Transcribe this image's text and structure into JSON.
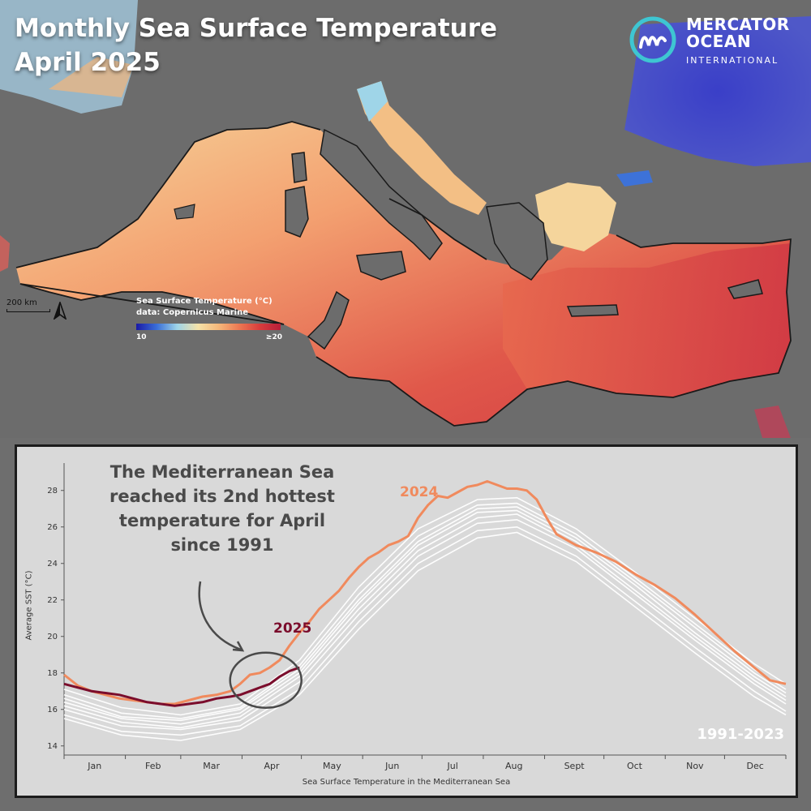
{
  "header": {
    "title_line1": "Monthly Sea Surface Temperature",
    "title_line2": "April 2025"
  },
  "logo": {
    "line1": "MERCATOR",
    "line2": "OCEAN",
    "line3": "INTERNATIONAL",
    "icon": "mercator-m-icon"
  },
  "map": {
    "scale_label": "200 km",
    "north_icon": "north-arrow-icon",
    "legend": {
      "title": "Sea Surface Temperature (°C)",
      "source": "data: Copernicus Marine",
      "min_label": "10",
      "max_label": "≥20"
    },
    "colors": {
      "land": "#6e6e6e",
      "cold": "#3340c4",
      "mid": "#f5d9a0",
      "warm": "#e06048",
      "hot": "#d13a44"
    }
  },
  "chart_data": {
    "type": "line",
    "title": "",
    "xlabel": "Sea Surface Temperature in the Mediterranean Sea",
    "ylabel": "Average SST (°C)",
    "ylim": [
      13.5,
      29.5
    ],
    "yticks": [
      "14",
      "16",
      "18",
      "20",
      "22",
      "24",
      "26",
      "28"
    ],
    "months": [
      "Jan",
      "Feb",
      "Mar",
      "Apr",
      "May",
      "Jun",
      "Jul",
      "Aug",
      "Sept",
      "Oct",
      "Nov",
      "Dec"
    ],
    "annotation": "The Mediterranean Sea reached its 2nd hottest temperature for April since 1991",
    "range_label": "1991-2023",
    "series": [
      {
        "name": "2024",
        "color": "#f08a5d",
        "points": [
          [
            1,
            17.9
          ],
          [
            8,
            17.3
          ],
          [
            15,
            17.0
          ],
          [
            22,
            16.8
          ],
          [
            29,
            16.6
          ],
          [
            36,
            16.5
          ],
          [
            43,
            16.4
          ],
          [
            50,
            16.3
          ],
          [
            57,
            16.3
          ],
          [
            64,
            16.5
          ],
          [
            71,
            16.7
          ],
          [
            78,
            16.8
          ],
          [
            85,
            17.0
          ],
          [
            90,
            17.4
          ],
          [
            95,
            17.9
          ],
          [
            100,
            18.0
          ],
          [
            105,
            18.3
          ],
          [
            110,
            18.7
          ],
          [
            115,
            19.5
          ],
          [
            120,
            20.2
          ],
          [
            125,
            20.8
          ],
          [
            130,
            21.5
          ],
          [
            135,
            22.0
          ],
          [
            140,
            22.5
          ],
          [
            145,
            23.2
          ],
          [
            150,
            23.8
          ],
          [
            155,
            24.3
          ],
          [
            160,
            24.6
          ],
          [
            165,
            25.0
          ],
          [
            170,
            25.2
          ],
          [
            175,
            25.5
          ],
          [
            180,
            26.5
          ],
          [
            185,
            27.2
          ],
          [
            190,
            27.7
          ],
          [
            195,
            27.6
          ],
          [
            200,
            27.9
          ],
          [
            205,
            28.2
          ],
          [
            210,
            28.3
          ],
          [
            215,
            28.5
          ],
          [
            220,
            28.3
          ],
          [
            225,
            28.1
          ],
          [
            230,
            28.1
          ],
          [
            235,
            28.0
          ],
          [
            240,
            27.5
          ],
          [
            245,
            26.5
          ],
          [
            250,
            25.6
          ],
          [
            260,
            25.0
          ],
          [
            270,
            24.6
          ],
          [
            280,
            24.1
          ],
          [
            290,
            23.4
          ],
          [
            300,
            22.8
          ],
          [
            310,
            22.1
          ],
          [
            320,
            21.2
          ],
          [
            330,
            20.2
          ],
          [
            340,
            19.2
          ],
          [
            350,
            18.3
          ],
          [
            358,
            17.6
          ],
          [
            366,
            17.4
          ]
        ]
      },
      {
        "name": "2025",
        "color": "#7b0d2c",
        "points": [
          [
            1,
            17.4
          ],
          [
            8,
            17.2
          ],
          [
            15,
            17.0
          ],
          [
            22,
            16.9
          ],
          [
            29,
            16.8
          ],
          [
            36,
            16.6
          ],
          [
            43,
            16.4
          ],
          [
            50,
            16.3
          ],
          [
            57,
            16.2
          ],
          [
            64,
            16.3
          ],
          [
            71,
            16.4
          ],
          [
            78,
            16.6
          ],
          [
            85,
            16.7
          ],
          [
            90,
            16.8
          ],
          [
            95,
            17.0
          ],
          [
            100,
            17.2
          ],
          [
            105,
            17.4
          ],
          [
            110,
            17.8
          ],
          [
            115,
            18.1
          ],
          [
            120,
            18.3
          ]
        ]
      }
    ],
    "climatology": [
      {
        "points": [
          [
            1,
            16.0
          ],
          [
            30,
            15.1
          ],
          [
            60,
            14.9
          ],
          [
            90,
            15.4
          ],
          [
            120,
            17.5
          ],
          [
            150,
            21.2
          ],
          [
            180,
            24.4
          ],
          [
            210,
            26.2
          ],
          [
            230,
            26.4
          ],
          [
            260,
            24.8
          ],
          [
            290,
            22.3
          ],
          [
            320,
            19.8
          ],
          [
            350,
            17.4
          ],
          [
            366,
            16.3
          ]
        ]
      },
      {
        "points": [
          [
            1,
            16.4
          ],
          [
            30,
            15.5
          ],
          [
            60,
            15.2
          ],
          [
            90,
            15.8
          ],
          [
            120,
            18.0
          ],
          [
            150,
            21.8
          ],
          [
            180,
            25.0
          ],
          [
            210,
            26.8
          ],
          [
            230,
            26.9
          ],
          [
            260,
            25.2
          ],
          [
            290,
            22.8
          ],
          [
            320,
            20.2
          ],
          [
            350,
            17.8
          ],
          [
            366,
            16.7
          ]
        ]
      },
      {
        "points": [
          [
            1,
            16.8
          ],
          [
            30,
            15.8
          ],
          [
            60,
            15.5
          ],
          [
            90,
            16.1
          ],
          [
            120,
            18.4
          ],
          [
            150,
            22.3
          ],
          [
            180,
            25.5
          ],
          [
            210,
            27.2
          ],
          [
            230,
            27.3
          ],
          [
            260,
            25.6
          ],
          [
            290,
            23.2
          ],
          [
            320,
            20.7
          ],
          [
            350,
            18.2
          ],
          [
            366,
            17.1
          ]
        ]
      },
      {
        "points": [
          [
            1,
            15.7
          ],
          [
            30,
            14.8
          ],
          [
            60,
            14.6
          ],
          [
            90,
            15.1
          ],
          [
            120,
            17.1
          ],
          [
            150,
            20.8
          ],
          [
            180,
            24.0
          ],
          [
            210,
            25.8
          ],
          [
            230,
            26.0
          ],
          [
            260,
            24.4
          ],
          [
            290,
            21.9
          ],
          [
            320,
            19.4
          ],
          [
            350,
            17.0
          ],
          [
            366,
            15.9
          ]
        ]
      },
      {
        "points": [
          [
            1,
            17.1
          ],
          [
            30,
            16.1
          ],
          [
            60,
            15.7
          ],
          [
            90,
            16.3
          ],
          [
            120,
            18.7
          ],
          [
            150,
            22.7
          ],
          [
            180,
            25.9
          ],
          [
            210,
            27.5
          ],
          [
            230,
            27.6
          ],
          [
            260,
            25.9
          ],
          [
            290,
            23.5
          ],
          [
            320,
            21.0
          ],
          [
            350,
            18.5
          ],
          [
            366,
            17.4
          ]
        ]
      },
      {
        "points": [
          [
            1,
            16.2
          ],
          [
            30,
            15.3
          ],
          [
            60,
            15.0
          ],
          [
            90,
            15.6
          ],
          [
            120,
            17.8
          ],
          [
            150,
            21.5
          ],
          [
            180,
            24.7
          ],
          [
            210,
            26.5
          ],
          [
            230,
            26.7
          ],
          [
            260,
            25.0
          ],
          [
            290,
            22.5
          ],
          [
            320,
            20.0
          ],
          [
            350,
            17.6
          ],
          [
            366,
            16.5
          ]
        ]
      },
      {
        "points": [
          [
            1,
            15.5
          ],
          [
            30,
            14.6
          ],
          [
            60,
            14.3
          ],
          [
            90,
            14.9
          ],
          [
            120,
            16.8
          ],
          [
            150,
            20.4
          ],
          [
            180,
            23.6
          ],
          [
            210,
            25.4
          ],
          [
            230,
            25.7
          ],
          [
            260,
            24.1
          ],
          [
            290,
            21.6
          ],
          [
            320,
            19.1
          ],
          [
            350,
            16.7
          ],
          [
            366,
            15.7
          ]
        ]
      },
      {
        "points": [
          [
            1,
            16.6
          ],
          [
            30,
            15.6
          ],
          [
            60,
            15.4
          ],
          [
            90,
            16.0
          ],
          [
            120,
            18.2
          ],
          [
            150,
            22.0
          ],
          [
            180,
            25.2
          ],
          [
            210,
            27.0
          ],
          [
            230,
            27.1
          ],
          [
            260,
            25.4
          ],
          [
            290,
            23.0
          ],
          [
            320,
            20.5
          ],
          [
            350,
            18.0
          ],
          [
            366,
            16.9
          ]
        ]
      }
    ]
  }
}
